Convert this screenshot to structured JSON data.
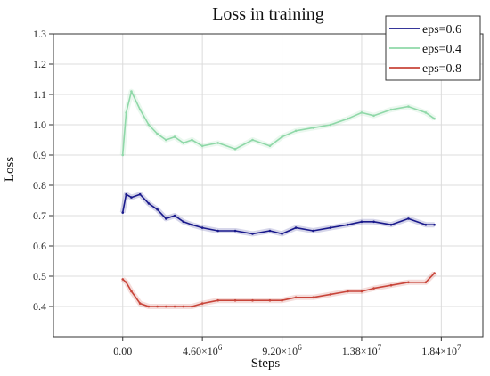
{
  "chart_data": {
    "type": "line",
    "title": "Loss in training",
    "xlabel": "Steps",
    "ylabel": "Loss",
    "xlim": [
      -4000000,
      20800000
    ],
    "ylim": [
      0.3,
      1.3
    ],
    "x_ticks": [
      0,
      4600000,
      9200000,
      13800000,
      18400000
    ],
    "x_tick_labels": [
      {
        "base": "0.00",
        "exp": ""
      },
      {
        "base": "4.60×10",
        "exp": "6"
      },
      {
        "base": "9.20×10",
        "exp": "6"
      },
      {
        "base": "1.38×10",
        "exp": "7"
      },
      {
        "base": "1.84×10",
        "exp": "7"
      }
    ],
    "y_ticks": [
      0.4,
      0.5,
      0.6,
      0.7,
      0.8,
      0.9,
      1.0,
      1.1,
      1.2,
      1.3
    ],
    "y_tick_labels": [
      "0.4",
      "0.5",
      "0.6",
      "0.7",
      "0.8",
      "0.9",
      "1.0",
      "1.1",
      "1.2",
      "1.3"
    ],
    "grid": true,
    "legend_position": "top-right",
    "series": [
      {
        "name": "eps=0.6",
        "color": "#1a1a8c",
        "x": [
          0,
          200000,
          500000,
          1000000,
          1500000,
          2000000,
          2500000,
          3000000,
          3500000,
          4000000,
          4600000,
          5500000,
          6500000,
          7500000,
          8500000,
          9200000,
          10000000,
          11000000,
          12000000,
          13000000,
          13800000,
          14500000,
          15500000,
          16500000,
          17500000,
          18000000
        ],
        "y": [
          0.71,
          0.77,
          0.76,
          0.77,
          0.74,
          0.72,
          0.69,
          0.7,
          0.68,
          0.67,
          0.66,
          0.65,
          0.65,
          0.64,
          0.65,
          0.64,
          0.66,
          0.65,
          0.66,
          0.67,
          0.68,
          0.68,
          0.67,
          0.69,
          0.67,
          0.67
        ]
      },
      {
        "name": "eps=0.4",
        "color": "#8fd8a8",
        "x": [
          0,
          200000,
          500000,
          1000000,
          1500000,
          2000000,
          2500000,
          3000000,
          3500000,
          4000000,
          4600000,
          5500000,
          6500000,
          7500000,
          8500000,
          9200000,
          10000000,
          11000000,
          12000000,
          13000000,
          13800000,
          14500000,
          15500000,
          16500000,
          17500000,
          18000000
        ],
        "y": [
          0.9,
          1.04,
          1.11,
          1.05,
          1.0,
          0.97,
          0.95,
          0.96,
          0.94,
          0.95,
          0.93,
          0.94,
          0.92,
          0.95,
          0.93,
          0.96,
          0.98,
          0.99,
          1.0,
          1.02,
          1.04,
          1.03,
          1.05,
          1.06,
          1.04,
          1.02
        ]
      },
      {
        "name": "eps=0.8",
        "color": "#c8453a",
        "x": [
          0,
          200000,
          500000,
          1000000,
          1500000,
          2000000,
          2500000,
          3000000,
          3500000,
          4000000,
          4600000,
          5500000,
          6500000,
          7500000,
          8500000,
          9200000,
          10000000,
          11000000,
          12000000,
          13000000,
          13800000,
          14500000,
          15500000,
          16500000,
          17500000,
          18000000
        ],
        "y": [
          0.49,
          0.48,
          0.45,
          0.41,
          0.4,
          0.4,
          0.4,
          0.4,
          0.4,
          0.4,
          0.41,
          0.42,
          0.42,
          0.42,
          0.42,
          0.42,
          0.43,
          0.43,
          0.44,
          0.45,
          0.45,
          0.46,
          0.47,
          0.48,
          0.48,
          0.51
        ]
      }
    ]
  }
}
